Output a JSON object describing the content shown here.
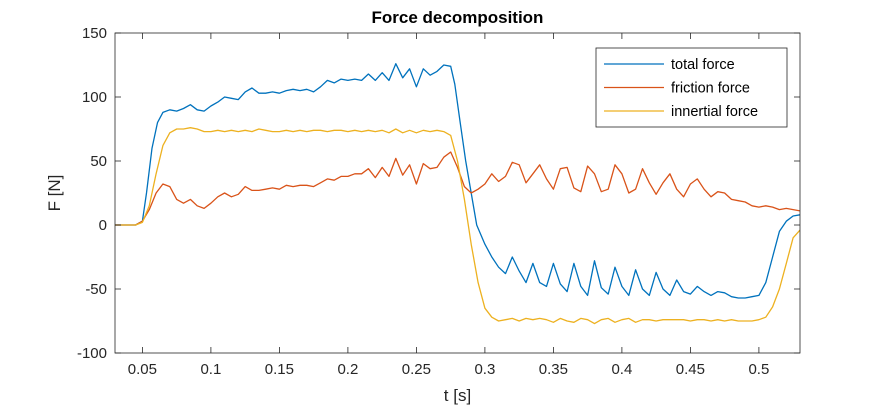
{
  "chart_data": {
    "type": "line",
    "title": "Force decomposition",
    "xlabel": "t [s]",
    "ylabel": "F [N]",
    "xlim": [
      0.03,
      0.53
    ],
    "ylim": [
      -100,
      150
    ],
    "xticks": [
      0.05,
      0.1,
      0.15,
      0.2,
      0.25,
      0.3,
      0.35,
      0.4,
      0.45,
      0.5
    ],
    "xtick_labels": [
      "0.05",
      "0.1",
      "0.15",
      "0.2",
      "0.25",
      "0.3",
      "0.35",
      "0.4",
      "0.45",
      "0.5"
    ],
    "yticks": [
      -100,
      -50,
      0,
      50,
      100,
      150
    ],
    "ytick_labels": [
      "-100",
      "-50",
      "0",
      "50",
      "100",
      "150"
    ],
    "grid": false,
    "legend_position": "top-right",
    "series": [
      {
        "name": "total force",
        "color": "#0072BD",
        "points": [
          [
            0.03,
            0
          ],
          [
            0.045,
            0
          ],
          [
            0.05,
            3
          ],
          [
            0.053,
            25
          ],
          [
            0.057,
            60
          ],
          [
            0.061,
            80
          ],
          [
            0.065,
            88
          ],
          [
            0.07,
            90
          ],
          [
            0.075,
            89
          ],
          [
            0.08,
            91
          ],
          [
            0.085,
            94
          ],
          [
            0.09,
            90
          ],
          [
            0.095,
            89
          ],
          [
            0.1,
            93
          ],
          [
            0.105,
            96
          ],
          [
            0.11,
            100
          ],
          [
            0.115,
            99
          ],
          [
            0.12,
            98
          ],
          [
            0.125,
            104
          ],
          [
            0.13,
            107
          ],
          [
            0.135,
            103
          ],
          [
            0.14,
            103
          ],
          [
            0.145,
            104
          ],
          [
            0.15,
            103
          ],
          [
            0.155,
            105
          ],
          [
            0.16,
            106
          ],
          [
            0.165,
            105
          ],
          [
            0.17,
            106
          ],
          [
            0.175,
            104
          ],
          [
            0.18,
            108
          ],
          [
            0.185,
            113
          ],
          [
            0.19,
            111
          ],
          [
            0.195,
            114
          ],
          [
            0.2,
            113
          ],
          [
            0.205,
            114
          ],
          [
            0.21,
            113
          ],
          [
            0.215,
            118
          ],
          [
            0.22,
            113
          ],
          [
            0.225,
            119
          ],
          [
            0.23,
            113
          ],
          [
            0.235,
            126
          ],
          [
            0.24,
            115
          ],
          [
            0.245,
            122
          ],
          [
            0.25,
            108
          ],
          [
            0.255,
            122
          ],
          [
            0.26,
            117
          ],
          [
            0.265,
            120
          ],
          [
            0.27,
            125
          ],
          [
            0.275,
            124
          ],
          [
            0.278,
            110
          ],
          [
            0.282,
            80
          ],
          [
            0.286,
            50
          ],
          [
            0.29,
            25
          ],
          [
            0.294,
            0
          ],
          [
            0.3,
            -15
          ],
          [
            0.305,
            -25
          ],
          [
            0.31,
            -33
          ],
          [
            0.315,
            -38
          ],
          [
            0.32,
            -25
          ],
          [
            0.325,
            -36
          ],
          [
            0.33,
            -45
          ],
          [
            0.335,
            -30
          ],
          [
            0.34,
            -45
          ],
          [
            0.345,
            -48
          ],
          [
            0.35,
            -30
          ],
          [
            0.355,
            -46
          ],
          [
            0.36,
            -52
          ],
          [
            0.365,
            -30
          ],
          [
            0.37,
            -48
          ],
          [
            0.375,
            -55
          ],
          [
            0.38,
            -28
          ],
          [
            0.385,
            -49
          ],
          [
            0.39,
            -54
          ],
          [
            0.395,
            -33
          ],
          [
            0.4,
            -48
          ],
          [
            0.405,
            -55
          ],
          [
            0.41,
            -35
          ],
          [
            0.415,
            -50
          ],
          [
            0.42,
            -55
          ],
          [
            0.425,
            -37
          ],
          [
            0.43,
            -50
          ],
          [
            0.435,
            -55
          ],
          [
            0.44,
            -43
          ],
          [
            0.445,
            -52
          ],
          [
            0.45,
            -54
          ],
          [
            0.455,
            -48
          ],
          [
            0.46,
            -52
          ],
          [
            0.465,
            -55
          ],
          [
            0.47,
            -52
          ],
          [
            0.475,
            -53
          ],
          [
            0.48,
            -56
          ],
          [
            0.485,
            -57
          ],
          [
            0.49,
            -57
          ],
          [
            0.495,
            -56
          ],
          [
            0.5,
            -55
          ],
          [
            0.505,
            -45
          ],
          [
            0.51,
            -25
          ],
          [
            0.515,
            -5
          ],
          [
            0.52,
            3
          ],
          [
            0.525,
            7
          ],
          [
            0.53,
            8
          ]
        ]
      },
      {
        "name": "friction force",
        "color": "#D95319",
        "points": [
          [
            0.03,
            0
          ],
          [
            0.045,
            0
          ],
          [
            0.05,
            3
          ],
          [
            0.055,
            12
          ],
          [
            0.06,
            25
          ],
          [
            0.065,
            32
          ],
          [
            0.07,
            30
          ],
          [
            0.075,
            20
          ],
          [
            0.08,
            17
          ],
          [
            0.085,
            20
          ],
          [
            0.09,
            15
          ],
          [
            0.095,
            13
          ],
          [
            0.1,
            17
          ],
          [
            0.105,
            22
          ],
          [
            0.11,
            25
          ],
          [
            0.115,
            22
          ],
          [
            0.12,
            24
          ],
          [
            0.125,
            30
          ],
          [
            0.13,
            27
          ],
          [
            0.135,
            27
          ],
          [
            0.14,
            28
          ],
          [
            0.145,
            29
          ],
          [
            0.15,
            28
          ],
          [
            0.155,
            31
          ],
          [
            0.16,
            30
          ],
          [
            0.165,
            31
          ],
          [
            0.17,
            31
          ],
          [
            0.175,
            30
          ],
          [
            0.18,
            33
          ],
          [
            0.185,
            36
          ],
          [
            0.19,
            35
          ],
          [
            0.195,
            38
          ],
          [
            0.2,
            38
          ],
          [
            0.205,
            40
          ],
          [
            0.21,
            40
          ],
          [
            0.215,
            44
          ],
          [
            0.22,
            37
          ],
          [
            0.225,
            45
          ],
          [
            0.23,
            38
          ],
          [
            0.235,
            52
          ],
          [
            0.24,
            39
          ],
          [
            0.245,
            47
          ],
          [
            0.25,
            32
          ],
          [
            0.255,
            48
          ],
          [
            0.26,
            44
          ],
          [
            0.265,
            45
          ],
          [
            0.27,
            53
          ],
          [
            0.275,
            57
          ],
          [
            0.28,
            45
          ],
          [
            0.285,
            30
          ],
          [
            0.29,
            25
          ],
          [
            0.295,
            28
          ],
          [
            0.3,
            32
          ],
          [
            0.305,
            40
          ],
          [
            0.31,
            34
          ],
          [
            0.315,
            38
          ],
          [
            0.32,
            49
          ],
          [
            0.325,
            47
          ],
          [
            0.33,
            33
          ],
          [
            0.335,
            40
          ],
          [
            0.34,
            47
          ],
          [
            0.345,
            36
          ],
          [
            0.35,
            28
          ],
          [
            0.355,
            44
          ],
          [
            0.36,
            45
          ],
          [
            0.365,
            29
          ],
          [
            0.37,
            26
          ],
          [
            0.375,
            46
          ],
          [
            0.38,
            40
          ],
          [
            0.385,
            26
          ],
          [
            0.39,
            28
          ],
          [
            0.395,
            47
          ],
          [
            0.4,
            40
          ],
          [
            0.405,
            25
          ],
          [
            0.41,
            28
          ],
          [
            0.415,
            44
          ],
          [
            0.42,
            33
          ],
          [
            0.425,
            24
          ],
          [
            0.43,
            33
          ],
          [
            0.435,
            40
          ],
          [
            0.44,
            28
          ],
          [
            0.445,
            22
          ],
          [
            0.45,
            32
          ],
          [
            0.455,
            36
          ],
          [
            0.46,
            28
          ],
          [
            0.465,
            22
          ],
          [
            0.47,
            26
          ],
          [
            0.475,
            25
          ],
          [
            0.48,
            20
          ],
          [
            0.485,
            19
          ],
          [
            0.49,
            18
          ],
          [
            0.495,
            15
          ],
          [
            0.5,
            14
          ],
          [
            0.505,
            15
          ],
          [
            0.51,
            14
          ],
          [
            0.515,
            12
          ],
          [
            0.52,
            13
          ],
          [
            0.525,
            12
          ],
          [
            0.53,
            11
          ]
        ]
      },
      {
        "name": "innertial force",
        "color": "#EDB120",
        "points": [
          [
            0.03,
            0
          ],
          [
            0.045,
            0
          ],
          [
            0.05,
            2
          ],
          [
            0.055,
            15
          ],
          [
            0.06,
            40
          ],
          [
            0.065,
            62
          ],
          [
            0.07,
            72
          ],
          [
            0.075,
            75
          ],
          [
            0.08,
            75
          ],
          [
            0.085,
            76
          ],
          [
            0.09,
            75
          ],
          [
            0.095,
            73
          ],
          [
            0.1,
            73
          ],
          [
            0.105,
            74
          ],
          [
            0.11,
            73
          ],
          [
            0.115,
            74
          ],
          [
            0.12,
            73
          ],
          [
            0.125,
            74
          ],
          [
            0.13,
            73
          ],
          [
            0.135,
            75
          ],
          [
            0.14,
            74
          ],
          [
            0.145,
            73
          ],
          [
            0.15,
            73
          ],
          [
            0.155,
            74
          ],
          [
            0.16,
            73
          ],
          [
            0.165,
            74
          ],
          [
            0.17,
            73
          ],
          [
            0.175,
            74
          ],
          [
            0.18,
            74
          ],
          [
            0.185,
            73
          ],
          [
            0.19,
            74
          ],
          [
            0.195,
            74
          ],
          [
            0.2,
            73
          ],
          [
            0.205,
            74
          ],
          [
            0.21,
            73
          ],
          [
            0.215,
            74
          ],
          [
            0.22,
            73
          ],
          [
            0.225,
            74
          ],
          [
            0.23,
            72
          ],
          [
            0.235,
            75
          ],
          [
            0.24,
            72
          ],
          [
            0.245,
            74
          ],
          [
            0.25,
            72
          ],
          [
            0.255,
            74
          ],
          [
            0.26,
            73
          ],
          [
            0.265,
            74
          ],
          [
            0.27,
            73
          ],
          [
            0.275,
            70
          ],
          [
            0.28,
            50
          ],
          [
            0.285,
            20
          ],
          [
            0.29,
            -15
          ],
          [
            0.295,
            -45
          ],
          [
            0.3,
            -65
          ],
          [
            0.305,
            -72
          ],
          [
            0.31,
            -75
          ],
          [
            0.315,
            -74
          ],
          [
            0.32,
            -73
          ],
          [
            0.325,
            -75
          ],
          [
            0.33,
            -73
          ],
          [
            0.335,
            -74
          ],
          [
            0.34,
            -73
          ],
          [
            0.345,
            -74
          ],
          [
            0.35,
            -76
          ],
          [
            0.355,
            -73
          ],
          [
            0.36,
            -75
          ],
          [
            0.365,
            -76
          ],
          [
            0.37,
            -73
          ],
          [
            0.375,
            -74
          ],
          [
            0.38,
            -77
          ],
          [
            0.385,
            -74
          ],
          [
            0.39,
            -73
          ],
          [
            0.395,
            -76
          ],
          [
            0.4,
            -74
          ],
          [
            0.405,
            -73
          ],
          [
            0.41,
            -76
          ],
          [
            0.415,
            -74
          ],
          [
            0.42,
            -74
          ],
          [
            0.425,
            -75
          ],
          [
            0.43,
            -74
          ],
          [
            0.435,
            -74
          ],
          [
            0.44,
            -74
          ],
          [
            0.445,
            -74
          ],
          [
            0.45,
            -75
          ],
          [
            0.455,
            -74
          ],
          [
            0.46,
            -74
          ],
          [
            0.465,
            -75
          ],
          [
            0.47,
            -74
          ],
          [
            0.475,
            -75
          ],
          [
            0.48,
            -74
          ],
          [
            0.485,
            -75
          ],
          [
            0.49,
            -75
          ],
          [
            0.495,
            -75
          ],
          [
            0.5,
            -74
          ],
          [
            0.505,
            -72
          ],
          [
            0.51,
            -64
          ],
          [
            0.515,
            -50
          ],
          [
            0.52,
            -30
          ],
          [
            0.525,
            -10
          ],
          [
            0.53,
            -4
          ]
        ]
      }
    ]
  }
}
